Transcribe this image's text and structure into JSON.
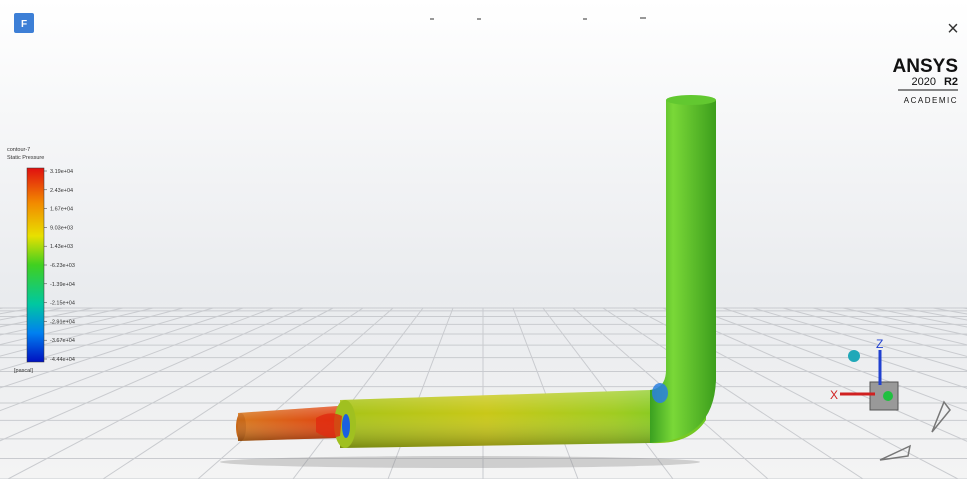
{
  "app": {
    "icon_label": "F",
    "close": "×"
  },
  "brand": {
    "name": "ANSYS",
    "version": "2020",
    "release": "R2",
    "edition": "ACADEMIC"
  },
  "legend": {
    "contour": "contour-7",
    "field": "Static Pressure",
    "labels": [
      "3.19e+04",
      "2.43e+04",
      "1.67e+04",
      "9.03e+03",
      "1.43e+03",
      "-6.23e+03",
      "-1.39e+04",
      "-2.15e+04",
      "-2.91e+04",
      "-3.67e+04",
      "-4.44e+04"
    ],
    "unit": "[pascal]"
  },
  "triad": {
    "x": "X",
    "z": "Z"
  }
}
